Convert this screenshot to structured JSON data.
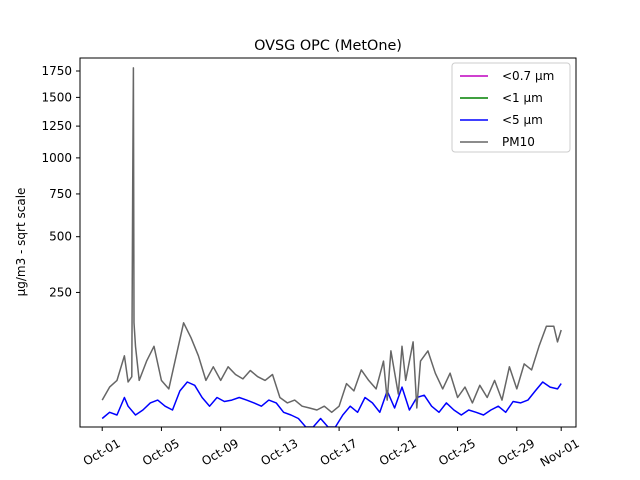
{
  "chart_data": {
    "type": "line",
    "title": "OVSG OPC (MetOne)",
    "xlabel": "",
    "ylabel": "µg/m3 - sqrt scale",
    "y_scale": "sqrt",
    "ylim": [
      0,
      1880
    ],
    "xlim": [
      "2023-09-29T12:00",
      "2023-11-02T00:00"
    ],
    "grid": false,
    "legend_position": "top-right",
    "x_ticks": [
      {
        "date": "2023-10-01",
        "label": "Oct-01"
      },
      {
        "date": "2023-10-05",
        "label": "Oct-05"
      },
      {
        "date": "2023-10-09",
        "label": "Oct-09"
      },
      {
        "date": "2023-10-13",
        "label": "Oct-13"
      },
      {
        "date": "2023-10-17",
        "label": "Oct-17"
      },
      {
        "date": "2023-10-21",
        "label": "Oct-21"
      },
      {
        "date": "2023-10-25",
        "label": "Oct-25"
      },
      {
        "date": "2023-10-29",
        "label": "Oct-29"
      },
      {
        "date": "2023-11-01",
        "label": "Nov-01"
      }
    ],
    "y_ticks": [
      {
        "value": 250,
        "label": "250"
      },
      {
        "value": 500,
        "label": "500"
      },
      {
        "value": 750,
        "label": "750"
      },
      {
        "value": 1000,
        "label": "1000"
      },
      {
        "value": 1250,
        "label": "1250"
      },
      {
        "value": 1500,
        "label": "1500"
      },
      {
        "value": 1750,
        "label": "1750"
      }
    ],
    "series": [
      {
        "name": "<0.7 µm",
        "color": "#bf00bf",
        "points": []
      },
      {
        "name": "<1 µm",
        "color": "#008000",
        "points": []
      },
      {
        "name": "<5 µm",
        "color": "#0000ff",
        "points": [
          [
            "2023-10-01T00:00",
            1
          ],
          [
            "2023-10-01T12:00",
            3
          ],
          [
            "2023-10-02T00:00",
            2
          ],
          [
            "2023-10-02T12:00",
            12
          ],
          [
            "2023-10-02T18:00",
            6
          ],
          [
            "2023-10-03T06:00",
            2
          ],
          [
            "2023-10-03T18:00",
            4
          ],
          [
            "2023-10-04T06:00",
            8
          ],
          [
            "2023-10-04T18:00",
            10
          ],
          [
            "2023-10-05T06:00",
            6
          ],
          [
            "2023-10-05T18:00",
            4
          ],
          [
            "2023-10-06T06:00",
            18
          ],
          [
            "2023-10-06T18:00",
            28
          ],
          [
            "2023-10-07T06:00",
            24
          ],
          [
            "2023-10-07T18:00",
            12
          ],
          [
            "2023-10-08T06:00",
            6
          ],
          [
            "2023-10-08T18:00",
            12
          ],
          [
            "2023-10-09T06:00",
            9
          ],
          [
            "2023-10-09T18:00",
            10
          ],
          [
            "2023-10-10T06:00",
            12
          ],
          [
            "2023-10-10T18:00",
            10
          ],
          [
            "2023-10-11T06:00",
            8
          ],
          [
            "2023-10-11T18:00",
            6
          ],
          [
            "2023-10-12T06:00",
            10
          ],
          [
            "2023-10-12T18:00",
            8
          ],
          [
            "2023-10-13T06:00",
            3
          ],
          [
            "2023-10-13T18:00",
            2
          ],
          [
            "2023-10-14T06:00",
            1
          ],
          [
            "2023-10-14T18:00",
            0
          ],
          [
            "2023-10-15T06:00",
            0
          ],
          [
            "2023-10-15T18:00",
            1
          ],
          [
            "2023-10-16T06:00",
            0
          ],
          [
            "2023-10-16T18:00",
            0
          ],
          [
            "2023-10-17T06:00",
            2
          ],
          [
            "2023-10-17T18:00",
            6
          ],
          [
            "2023-10-18T06:00",
            3
          ],
          [
            "2023-10-18T18:00",
            12
          ],
          [
            "2023-10-19T06:00",
            8
          ],
          [
            "2023-10-19T18:00",
            3
          ],
          [
            "2023-10-20T06:00",
            18
          ],
          [
            "2023-10-20T18:00",
            5
          ],
          [
            "2023-10-21T06:00",
            22
          ],
          [
            "2023-10-21T18:00",
            4
          ],
          [
            "2023-10-22T06:00",
            12
          ],
          [
            "2023-10-22T18:00",
            14
          ],
          [
            "2023-10-23T06:00",
            6
          ],
          [
            "2023-10-23T18:00",
            3
          ],
          [
            "2023-10-24T06:00",
            8
          ],
          [
            "2023-10-24T18:00",
            4
          ],
          [
            "2023-10-25T06:00",
            2
          ],
          [
            "2023-10-25T18:00",
            4
          ],
          [
            "2023-10-26T06:00",
            3
          ],
          [
            "2023-10-26T18:00",
            2
          ],
          [
            "2023-10-27T06:00",
            4
          ],
          [
            "2023-10-27T18:00",
            6
          ],
          [
            "2023-10-28T06:00",
            3
          ],
          [
            "2023-10-28T18:00",
            9
          ],
          [
            "2023-10-29T06:00",
            8
          ],
          [
            "2023-10-29T18:00",
            10
          ],
          [
            "2023-10-30T06:00",
            18
          ],
          [
            "2023-10-30T18:00",
            28
          ],
          [
            "2023-10-31T06:00",
            22
          ],
          [
            "2023-10-31T18:00",
            20
          ],
          [
            "2023-11-01T00:00",
            26
          ]
        ]
      },
      {
        "name": "PM10",
        "color": "#666666",
        "points": [
          [
            "2023-10-01T00:00",
            10
          ],
          [
            "2023-10-01T12:00",
            22
          ],
          [
            "2023-10-02T00:00",
            30
          ],
          [
            "2023-10-02T12:00",
            70
          ],
          [
            "2023-10-02T18:00",
            28
          ],
          [
            "2023-10-03T00:00",
            35
          ],
          [
            "2023-10-03T01:30",
            800
          ],
          [
            "2023-10-03T02:30",
            1780
          ],
          [
            "2023-10-03T03:30",
            150
          ],
          [
            "2023-10-03T06:00",
            90
          ],
          [
            "2023-10-03T12:00",
            30
          ],
          [
            "2023-10-04T00:00",
            60
          ],
          [
            "2023-10-04T12:00",
            90
          ],
          [
            "2023-10-05T00:00",
            30
          ],
          [
            "2023-10-05T12:00",
            20
          ],
          [
            "2023-10-06T00:00",
            70
          ],
          [
            "2023-10-06T12:00",
            150
          ],
          [
            "2023-10-07T00:00",
            110
          ],
          [
            "2023-10-07T12:00",
            70
          ],
          [
            "2023-10-08T00:00",
            30
          ],
          [
            "2023-10-08T12:00",
            50
          ],
          [
            "2023-10-09T00:00",
            30
          ],
          [
            "2023-10-09T12:00",
            50
          ],
          [
            "2023-10-10T00:00",
            38
          ],
          [
            "2023-10-10T12:00",
            32
          ],
          [
            "2023-10-11T00:00",
            44
          ],
          [
            "2023-10-11T12:00",
            35
          ],
          [
            "2023-10-12T00:00",
            30
          ],
          [
            "2023-10-12T12:00",
            38
          ],
          [
            "2023-10-13T00:00",
            12
          ],
          [
            "2023-10-13T12:00",
            8
          ],
          [
            "2023-10-14T00:00",
            10
          ],
          [
            "2023-10-14T12:00",
            6
          ],
          [
            "2023-10-15T00:00",
            5
          ],
          [
            "2023-10-15T12:00",
            4
          ],
          [
            "2023-10-16T00:00",
            6
          ],
          [
            "2023-10-16T12:00",
            3
          ],
          [
            "2023-10-17T00:00",
            6
          ],
          [
            "2023-10-17T12:00",
            26
          ],
          [
            "2023-10-18T00:00",
            18
          ],
          [
            "2023-10-18T12:00",
            45
          ],
          [
            "2023-10-19T00:00",
            30
          ],
          [
            "2023-10-19T12:00",
            20
          ],
          [
            "2023-10-20T00:00",
            60
          ],
          [
            "2023-10-20T06:00",
            10
          ],
          [
            "2023-10-20T12:00",
            80
          ],
          [
            "2023-10-21T00:00",
            15
          ],
          [
            "2023-10-21T06:00",
            90
          ],
          [
            "2023-10-21T12:00",
            30
          ],
          [
            "2023-10-22T00:00",
            100
          ],
          [
            "2023-10-22T06:00",
            5
          ],
          [
            "2023-10-22T12:00",
            60
          ],
          [
            "2023-10-23T00:00",
            80
          ],
          [
            "2023-10-23T12:00",
            40
          ],
          [
            "2023-10-24T00:00",
            20
          ],
          [
            "2023-10-24T12:00",
            40
          ],
          [
            "2023-10-25T00:00",
            12
          ],
          [
            "2023-10-25T12:00",
            22
          ],
          [
            "2023-10-26T00:00",
            8
          ],
          [
            "2023-10-26T12:00",
            24
          ],
          [
            "2023-10-27T00:00",
            12
          ],
          [
            "2023-10-27T12:00",
            30
          ],
          [
            "2023-10-28T00:00",
            10
          ],
          [
            "2023-10-28T12:00",
            50
          ],
          [
            "2023-10-29T00:00",
            20
          ],
          [
            "2023-10-29T12:00",
            55
          ],
          [
            "2023-10-30T00:00",
            45
          ],
          [
            "2023-10-30T12:00",
            90
          ],
          [
            "2023-10-31T00:00",
            140
          ],
          [
            "2023-10-31T12:00",
            140
          ],
          [
            "2023-10-31T18:00",
            100
          ],
          [
            "2023-11-01T00:00",
            130
          ]
        ]
      }
    ]
  }
}
